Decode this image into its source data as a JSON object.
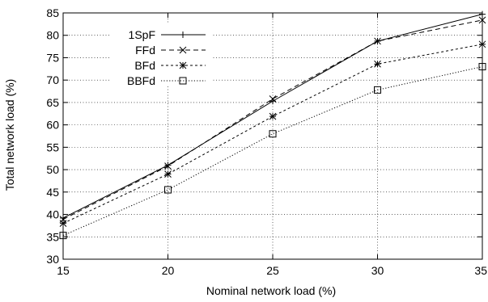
{
  "chart_data": {
    "type": "line",
    "title": "",
    "xlabel": "Nominal network load (%)",
    "ylabel": "Total network load (%)",
    "x": [
      15,
      20,
      25,
      30,
      35
    ],
    "xlim": [
      15,
      35
    ],
    "ylim": [
      30,
      85
    ],
    "xticks": [
      "15",
      "20",
      "25",
      "30",
      "35"
    ],
    "yticks": [
      "30",
      "35",
      "40",
      "45",
      "50",
      "55",
      "60",
      "65",
      "70",
      "75",
      "80",
      "85"
    ],
    "grid": true,
    "legend_position": "top-left",
    "series": [
      {
        "name": "1SpF",
        "values": [
          39.2,
          51.0,
          65.3,
          78.7,
          84.7
        ],
        "marker": "plus",
        "dash": "solid"
      },
      {
        "name": "FFd",
        "values": [
          38.9,
          50.8,
          65.8,
          78.7,
          83.4
        ],
        "marker": "cross",
        "dash": "dashed"
      },
      {
        "name": "BFd",
        "values": [
          38.0,
          49.0,
          61.9,
          73.6,
          78.0
        ],
        "marker": "asterisk",
        "dash": "dashdot"
      },
      {
        "name": "BBFd",
        "values": [
          35.3,
          45.5,
          58.0,
          67.8,
          73.0
        ],
        "marker": "square",
        "dash": "dotted"
      }
    ]
  }
}
